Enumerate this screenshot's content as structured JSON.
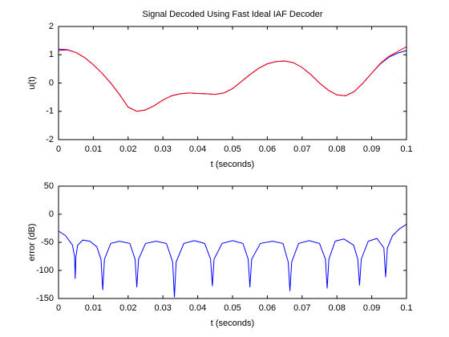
{
  "chart_data": [
    {
      "type": "line",
      "title": "Signal Decoded Using Fast Ideal IAF Decoder",
      "xlabel": "t (seconds)",
      "ylabel": "u(t)",
      "x": [
        0,
        0.0025,
        0.005,
        0.0075,
        0.01,
        0.0125,
        0.015,
        0.0175,
        0.02,
        0.0225,
        0.025,
        0.0275,
        0.03,
        0.0325,
        0.035,
        0.0375,
        0.04,
        0.0425,
        0.045,
        0.0475,
        0.05,
        0.0525,
        0.055,
        0.0575,
        0.06,
        0.0625,
        0.065,
        0.0675,
        0.07,
        0.0725,
        0.075,
        0.0775,
        0.08,
        0.0825,
        0.085,
        0.0875,
        0.09,
        0.0925,
        0.095,
        0.0975,
        0.1
      ],
      "series": [
        {
          "color": "#0000ff",
          "values": [
            1.2,
            1.18,
            1.08,
            0.9,
            0.65,
            0.35,
            0.0,
            -0.4,
            -0.85,
            -1.0,
            -0.95,
            -0.8,
            -0.6,
            -0.45,
            -0.38,
            -0.35,
            -0.37,
            -0.38,
            -0.4,
            -0.35,
            -0.2,
            0.05,
            0.3,
            0.52,
            0.68,
            0.76,
            0.78,
            0.72,
            0.55,
            0.3,
            0.0,
            -0.25,
            -0.42,
            -0.45,
            -0.3,
            0.0,
            0.35,
            0.68,
            0.92,
            1.06,
            1.15
          ]
        },
        {
          "color": "#ff0000",
          "values": [
            1.15,
            1.17,
            1.08,
            0.9,
            0.65,
            0.35,
            0.0,
            -0.4,
            -0.85,
            -1.0,
            -0.95,
            -0.8,
            -0.6,
            -0.45,
            -0.38,
            -0.35,
            -0.37,
            -0.38,
            -0.4,
            -0.35,
            -0.2,
            0.05,
            0.3,
            0.52,
            0.68,
            0.76,
            0.78,
            0.72,
            0.55,
            0.3,
            0.0,
            -0.25,
            -0.42,
            -0.45,
            -0.3,
            0.0,
            0.35,
            0.7,
            0.95,
            1.12,
            1.28
          ]
        }
      ],
      "xlim": [
        0,
        0.1
      ],
      "xticks": [
        0,
        0.01,
        0.02,
        0.03,
        0.04,
        0.05,
        0.06,
        0.07,
        0.08,
        0.09,
        0.1
      ],
      "ylim": [
        -2,
        2
      ],
      "yticks": [
        -2,
        -1,
        0,
        1,
        2
      ],
      "grid": false
    },
    {
      "type": "line",
      "xlabel": "t (seconds)",
      "ylabel": "error (dB)",
      "x": [
        0,
        0.002,
        0.004,
        0.0046,
        0.0048,
        0.005,
        0.0055,
        0.007,
        0.009,
        0.011,
        0.0122,
        0.0127,
        0.0132,
        0.015,
        0.0175,
        0.0205,
        0.022,
        0.0225,
        0.023,
        0.025,
        0.028,
        0.031,
        0.0328,
        0.0333,
        0.0338,
        0.036,
        0.039,
        0.042,
        0.0437,
        0.0442,
        0.0447,
        0.047,
        0.05,
        0.053,
        0.0545,
        0.055,
        0.0555,
        0.058,
        0.0615,
        0.0645,
        0.066,
        0.0665,
        0.067,
        0.069,
        0.072,
        0.075,
        0.0767,
        0.0772,
        0.0777,
        0.0795,
        0.082,
        0.0848,
        0.086,
        0.0865,
        0.087,
        0.089,
        0.0915,
        0.0935,
        0.094,
        0.0945,
        0.096,
        0.098,
        0.1
      ],
      "series": [
        {
          "color": "#0000ff",
          "values": [
            -30,
            -38,
            -55,
            -75,
            -115,
            -75,
            -55,
            -46,
            -48,
            -58,
            -80,
            -135,
            -80,
            -52,
            -48,
            -52,
            -80,
            -130,
            -80,
            -52,
            -48,
            -52,
            -85,
            -148,
            -85,
            -52,
            -47,
            -52,
            -80,
            -128,
            -80,
            -52,
            -47,
            -52,
            -80,
            -130,
            -80,
            -52,
            -48,
            -52,
            -85,
            -137,
            -85,
            -52,
            -47,
            -52,
            -80,
            -132,
            -80,
            -48,
            -44,
            -55,
            -80,
            -127,
            -80,
            -48,
            -43,
            -60,
            -112,
            -60,
            -38,
            -26,
            -18
          ]
        }
      ],
      "xlim": [
        0,
        0.1
      ],
      "xticks": [
        0,
        0.01,
        0.02,
        0.03,
        0.04,
        0.05,
        0.06,
        0.07,
        0.08,
        0.09,
        0.1
      ],
      "ylim": [
        -150,
        50
      ],
      "yticks": [
        -150,
        -100,
        -50,
        0,
        50
      ],
      "grid": false
    }
  ]
}
